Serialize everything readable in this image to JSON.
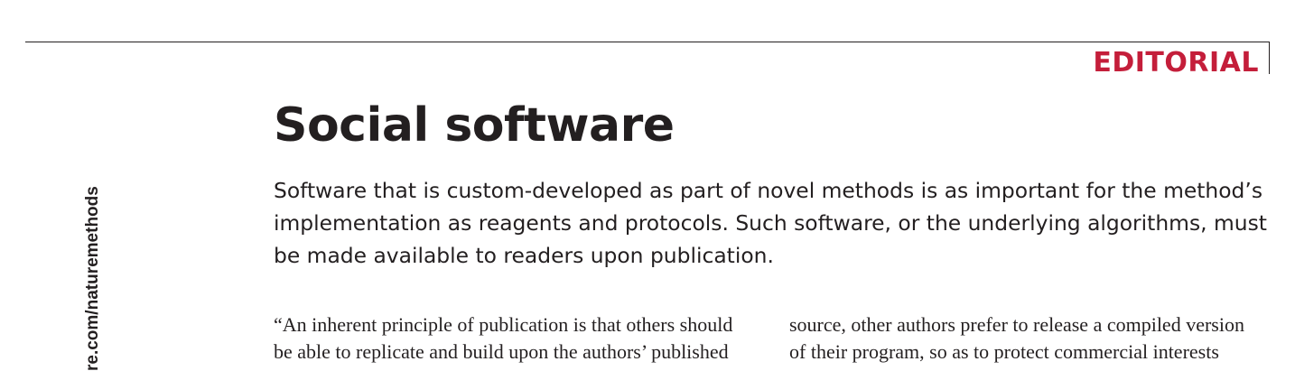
{
  "header": {
    "section_label": "EDITORIAL"
  },
  "sidebar": {
    "url_text": "re.com/naturemethods"
  },
  "article": {
    "title": "Social software",
    "standfirst": "Software that is custom-developed as part of novel methods is as important for the method’s implementation as reagents and protocols. Such software, or the underlying algorithms, must be made available to readers upon publication.",
    "body_left_lines": [
      "“An inherent principle of publication is that others should",
      "be able to replicate and build upon the authors’ published"
    ],
    "body_right_lines": [
      "source, other authors prefer to release a compiled version",
      "of their program, so as to protect commercial interests"
    ]
  }
}
